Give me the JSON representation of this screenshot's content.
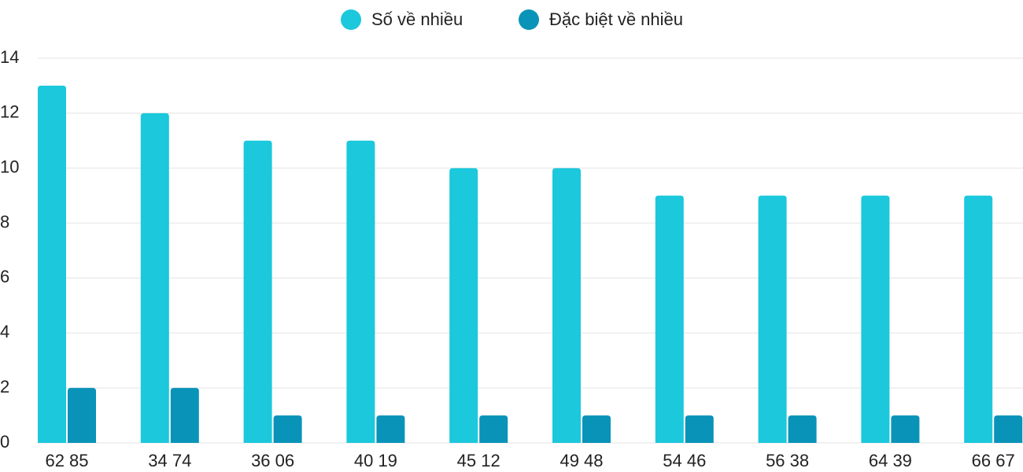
{
  "chart_data": {
    "type": "bar",
    "categories": [
      "62 85",
      "34 74",
      "36 06",
      "40 19",
      "45 12",
      "49 48",
      "54 46",
      "56 38",
      "64 39",
      "66 67"
    ],
    "series": [
      {
        "name": "Số về nhiều",
        "color": "#1bc8dc",
        "values": [
          13,
          12,
          11,
          11,
          10,
          10,
          9,
          9,
          9,
          9
        ]
      },
      {
        "name": "Đặc biệt về nhiều",
        "color": "#0a93b8",
        "values": [
          2,
          2,
          1,
          1,
          1,
          1,
          1,
          1,
          1,
          1
        ]
      }
    ],
    "ylim": [
      0,
      14
    ],
    "yticks": [
      0,
      2,
      4,
      6,
      8,
      10,
      12,
      14
    ],
    "grid": true,
    "legend": "top"
  }
}
